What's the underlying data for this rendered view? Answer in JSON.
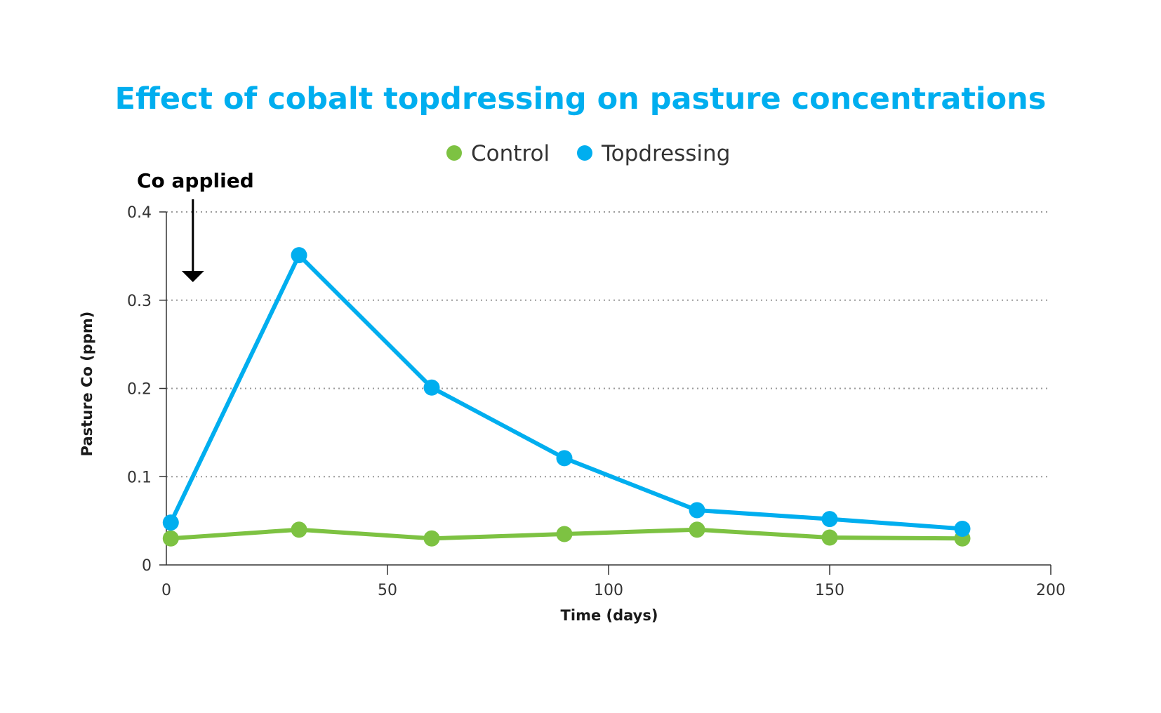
{
  "chart_data": {
    "type": "line",
    "title": "Effect of cobalt topdressing on pasture concentrations",
    "xlabel": "Time (days)",
    "ylabel": "Pasture Co (ppm)",
    "xlim": [
      0,
      200
    ],
    "ylim": [
      0,
      0.4
    ],
    "x_ticks": [
      0,
      50,
      100,
      150,
      200
    ],
    "x_tick_labels": [
      "0",
      "50",
      "100",
      "150",
      "200"
    ],
    "y_ticks": [
      0,
      0.1,
      0.2,
      0.3,
      0.4
    ],
    "y_tick_labels": [
      "0",
      "0.1",
      "0.2",
      "0.3",
      "0.4"
    ],
    "grid": "horizontal dotted",
    "legend_position": "top-center",
    "colors": {
      "title": "#00aeef",
      "control": "#7dc242",
      "topdressing": "#00aeef",
      "axis": "#333333",
      "grid": "#9a9a9a",
      "annotation": "#000000"
    },
    "series": [
      {
        "name": "Control",
        "color": "#7dc242",
        "x": [
          1,
          30,
          60,
          90,
          120,
          150,
          180
        ],
        "y": [
          0.03,
          0.04,
          0.03,
          0.035,
          0.04,
          0.031,
          0.03
        ]
      },
      {
        "name": "Topdressing",
        "color": "#00aeef",
        "x": [
          1,
          30,
          60,
          90,
          120,
          150,
          180
        ],
        "y": [
          0.048,
          0.351,
          0.201,
          0.121,
          0.062,
          0.052,
          0.041
        ]
      }
    ],
    "annotations": [
      {
        "text": "Co applied",
        "x": 6,
        "arrow": "down"
      }
    ]
  }
}
